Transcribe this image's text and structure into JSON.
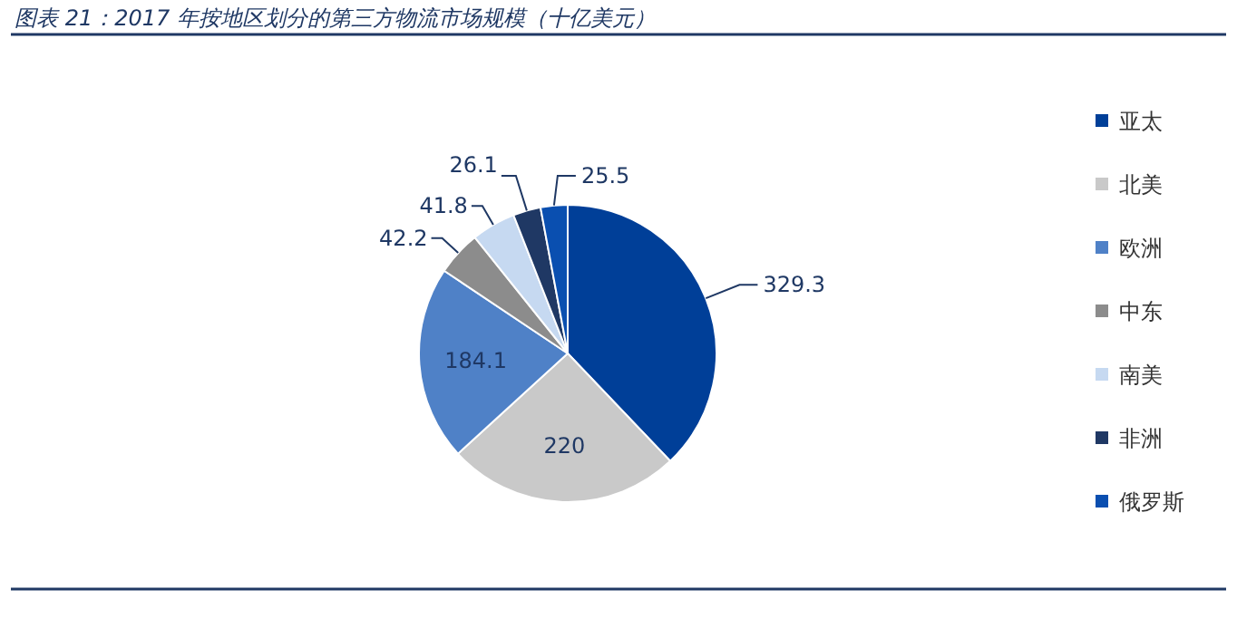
{
  "chart_data": {
    "type": "pie",
    "title": "图表 21：2017 年按地区划分的第三方物流市场规模（十亿美元）",
    "categories": [
      "亚太",
      "北美",
      "欧洲",
      "中东",
      "南美",
      "非洲",
      "俄罗斯"
    ],
    "values": [
      329.3,
      220,
      184.1,
      42.2,
      41.8,
      26.1,
      25.5
    ],
    "colors": [
      "#003f98",
      "#c9c9c9",
      "#4f81c7",
      "#8c8c8c",
      "#c6d9f1",
      "#1f3864",
      "#0a4fb0"
    ],
    "data_labels": true,
    "legend": "right"
  }
}
